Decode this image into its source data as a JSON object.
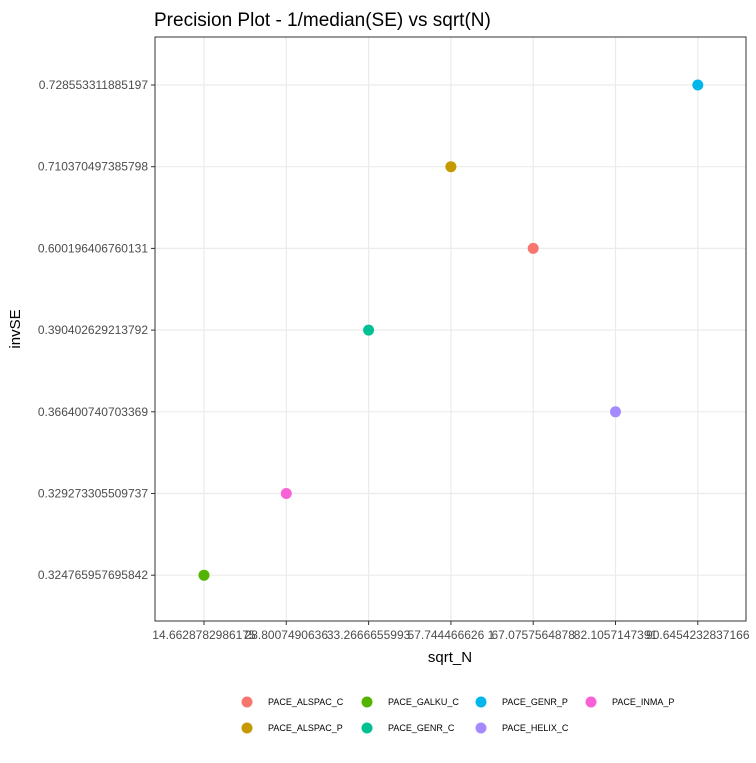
{
  "chart_data": {
    "type": "scatter",
    "title": "Precision Plot - 1/median(SE) vs sqrt(N)",
    "xlabel": "sqrt_N",
    "ylabel": "invSE",
    "x_scale": "categorical",
    "y_scale": "categorical",
    "x_categories": [
      "14.6628782986175",
      "28.8007490636",
      "33.2666655993",
      "57.744466626 1",
      "67.0757564878",
      "82.1057147391",
      "90.6454232837166"
    ],
    "x_tick_labels": [
      "14.6628782986175",
      "28.8007490636",
      "33.2666655993",
      "57.744466626 1",
      "67.0757564878",
      "82.1057147391",
      "90.6454232837166"
    ],
    "y_categories": [
      "0.324765957695842",
      "0.329273305509737",
      "0.366400740703369",
      "0.390402629213792",
      "0.600196406760131",
      "0.710370497385798",
      "0.728553311885197"
    ],
    "points": [
      {
        "series": "PACE_GALKU_C",
        "x": "14.6628782986175",
        "y": "0.324765957695842"
      },
      {
        "series": "PACE_INMA_P",
        "x": "28.8007490636",
        "y": "0.329273305509737"
      },
      {
        "series": "PACE_GENR_C",
        "x": "33.2666655993",
        "y": "0.390402629213792"
      },
      {
        "series": "PACE_ALSPAC_P",
        "x": "57.744466626 1",
        "y": "0.710370497385798"
      },
      {
        "series": "PACE_ALSPAC_C",
        "x": "67.0757564878",
        "y": "0.600196406760131"
      },
      {
        "series": "PACE_HELIX_C",
        "x": "82.1057147391",
        "y": "0.366400740703369"
      },
      {
        "series": "PACE_GENR_P",
        "x": "90.6454232837166",
        "y": "0.728553311885197"
      }
    ],
    "series": [
      {
        "name": "PACE_ALSPAC_C",
        "color": "#F8766D"
      },
      {
        "name": "PACE_ALSPAC_P",
        "color": "#C49A00"
      },
      {
        "name": "PACE_GALKU_C",
        "color": "#53B400"
      },
      {
        "name": "PACE_GENR_C",
        "color": "#00C094"
      },
      {
        "name": "PACE_GENR_P",
        "color": "#00B6EB"
      },
      {
        "name": "PACE_HELIX_C",
        "color": "#A58AFF"
      },
      {
        "name": "PACE_INMA_P",
        "color": "#FB61D7"
      }
    ],
    "legend": {
      "placement": "bottom",
      "rows": [
        [
          "PACE_ALSPAC_C",
          "PACE_GALKU_C",
          "PACE_GENR_P",
          "PACE_INMA_P"
        ],
        [
          "PACE_ALSPAC_P",
          "PACE_GENR_C",
          "PACE_HELIX_C"
        ]
      ]
    },
    "grid": true,
    "panel_background": "#FFFFFF",
    "grid_color": "#EBEBEB",
    "border_color": "#333333"
  }
}
